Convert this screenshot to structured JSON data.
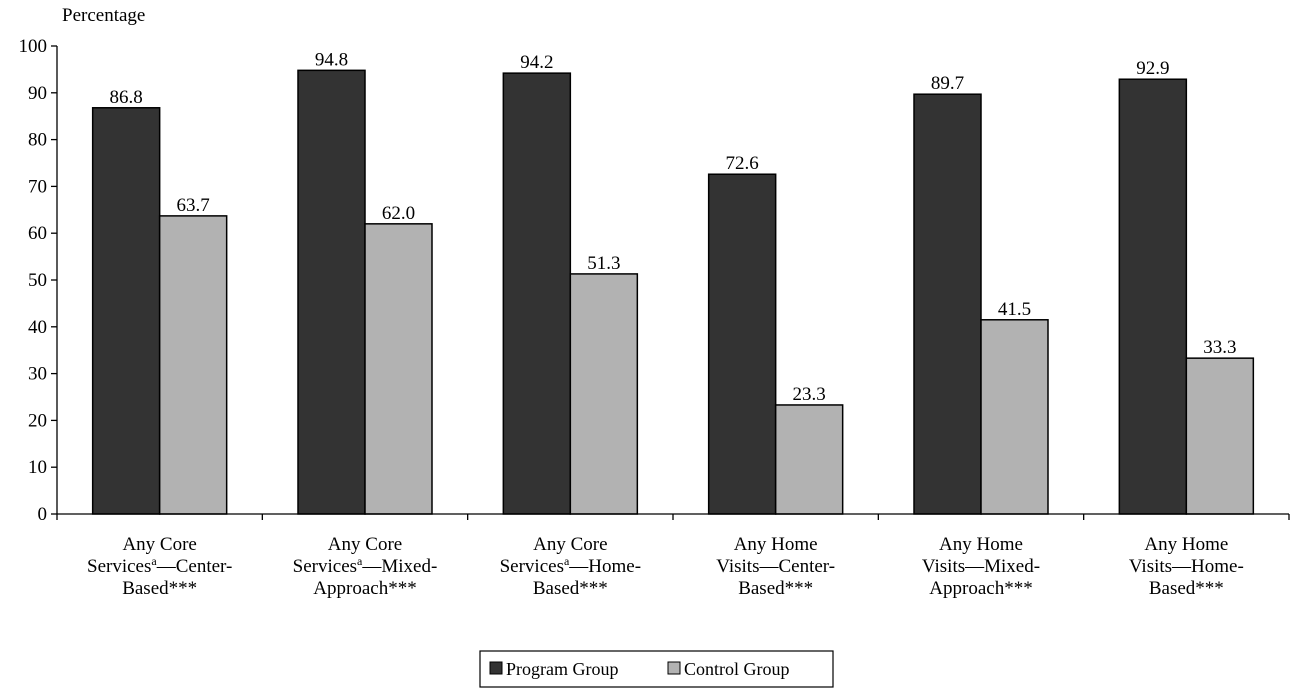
{
  "chart_data": {
    "type": "bar",
    "ylabel": "Percentage",
    "ylim": [
      0,
      100
    ],
    "yticks": [
      "0",
      "10",
      "20",
      "30",
      "40",
      "50",
      "60",
      "70",
      "80",
      "90",
      "100"
    ],
    "categories": [
      {
        "lines": [
          [
            "Any Core"
          ],
          [
            "Services",
            "a",
            "—Center-"
          ],
          [
            "Based***"
          ]
        ]
      },
      {
        "lines": [
          [
            "Any Core"
          ],
          [
            "Services",
            "a",
            "—Mixed-"
          ],
          [
            "Approach***"
          ]
        ]
      },
      {
        "lines": [
          [
            "Any Core"
          ],
          [
            "Services",
            "a",
            "—Home-"
          ],
          [
            "Based***"
          ]
        ]
      },
      {
        "lines": [
          [
            "Any Home"
          ],
          [
            "Visits—Center-"
          ],
          [
            "Based***"
          ]
        ]
      },
      {
        "lines": [
          [
            "Any Home"
          ],
          [
            "Visits—Mixed-"
          ],
          [
            "Approach***"
          ]
        ]
      },
      {
        "lines": [
          [
            "Any Home"
          ],
          [
            "Visits—Home-"
          ],
          [
            "Based***"
          ]
        ]
      }
    ],
    "series": [
      {
        "name": "Program Group",
        "color": "#333333",
        "values": [
          86.8,
          94.8,
          94.2,
          72.6,
          89.7,
          92.9
        ],
        "labels": [
          "86.8",
          "94.8",
          "94.2",
          "72.6",
          "89.7",
          "92.9"
        ]
      },
      {
        "name": "Control Group",
        "color": "#b2b2b2",
        "values": [
          63.7,
          62.0,
          51.3,
          23.3,
          41.5,
          33.3
        ],
        "labels": [
          "63.7",
          "62.0",
          "51.3",
          "23.3",
          "41.5",
          "33.3"
        ]
      }
    ],
    "legend_position": "bottom-center",
    "grid": false
  }
}
